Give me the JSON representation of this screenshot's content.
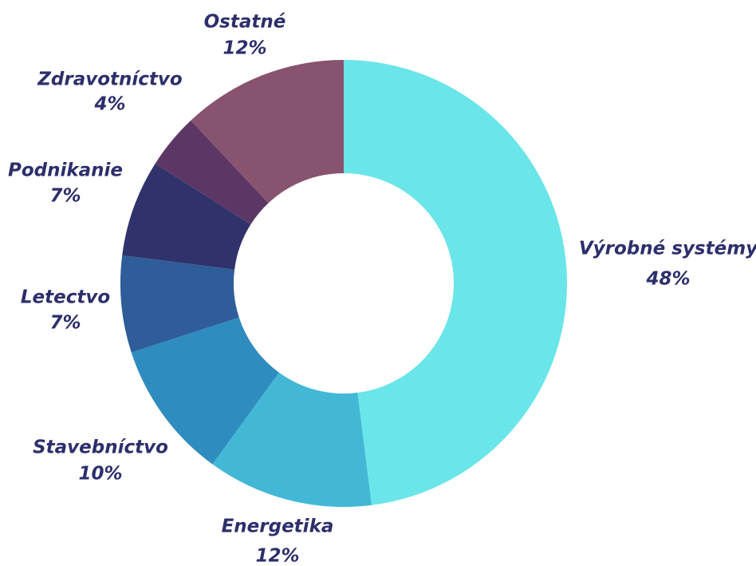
{
  "chart_data": {
    "type": "donut",
    "categories": [
      "Výrobné systémy",
      "Energetika",
      "Stavebníctvo",
      "Letectvo",
      "Podnikanie",
      "Zdravotníctvo",
      "Ostatné"
    ],
    "values": [
      48,
      12,
      10,
      7,
      7,
      4,
      12
    ],
    "value_labels": [
      "48%",
      "12%",
      "10%",
      "7%",
      "7%",
      "4%",
      "12%"
    ],
    "colors": [
      "#6ae5e9",
      "#42b8d6",
      "#2f8cbe",
      "#2e5d99",
      "#30336b",
      "#5c3766",
      "#87536f"
    ]
  }
}
